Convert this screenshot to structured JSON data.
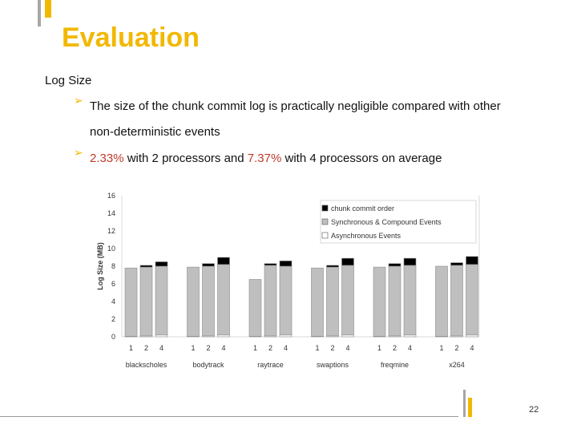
{
  "slide": {
    "title": "Evaluation",
    "subtitle": "Log Size",
    "bullet1": "The size of the chunk commit log is practically negligible compared with other non-deterministic events",
    "bullet2_part1": "2.33%",
    "bullet2_part2": " with 2 processors and ",
    "bullet2_part3": "7.37%",
    "bullet2_part4": " with 4 processors on average",
    "page_number": "22"
  },
  "colors": {
    "accent": "#f2b800",
    "highlight_red": "#c0392b",
    "async": "#ffffff",
    "sync": "#bfbfbf",
    "chunk": "#000000"
  },
  "chart_data": {
    "type": "bar",
    "stacked": true,
    "ylabel": "Log Size (MB)",
    "ylim": [
      0,
      16
    ],
    "yticks": [
      0,
      2,
      4,
      6,
      8,
      10,
      12,
      14,
      16
    ],
    "groups": [
      "blackscholes",
      "bodytrack",
      "raytrace",
      "swaptions",
      "freqmine",
      "x264"
    ],
    "categories": [
      "1",
      "2",
      "4"
    ],
    "legend": [
      "chunk commit order",
      "Synchronous & Compound Events",
      "Asynchronous Events"
    ],
    "series": [
      {
        "name": "Asynchronous Events",
        "values": [
          [
            0.05,
            0.1,
            0.2
          ],
          [
            0.05,
            0.1,
            0.2
          ],
          [
            0.05,
            0.1,
            0.2
          ],
          [
            0.05,
            0.1,
            0.2
          ],
          [
            0.05,
            0.1,
            0.2
          ],
          [
            0.05,
            0.1,
            0.2
          ]
        ]
      },
      {
        "name": "Synchronous & Compound Events",
        "values": [
          [
            7.75,
            7.8,
            7.8
          ],
          [
            7.85,
            7.9,
            8.0
          ],
          [
            6.45,
            8.0,
            7.8
          ],
          [
            7.75,
            7.8,
            7.9
          ],
          [
            7.85,
            7.9,
            7.9
          ],
          [
            7.95,
            8.0,
            8.0
          ]
        ]
      },
      {
        "name": "chunk commit order",
        "values": [
          [
            0,
            0.2,
            0.5
          ],
          [
            0,
            0.3,
            0.8
          ],
          [
            0,
            0.2,
            0.6
          ],
          [
            0,
            0.2,
            0.8
          ],
          [
            0,
            0.3,
            0.8
          ],
          [
            0,
            0.3,
            0.9
          ]
        ]
      }
    ]
  }
}
